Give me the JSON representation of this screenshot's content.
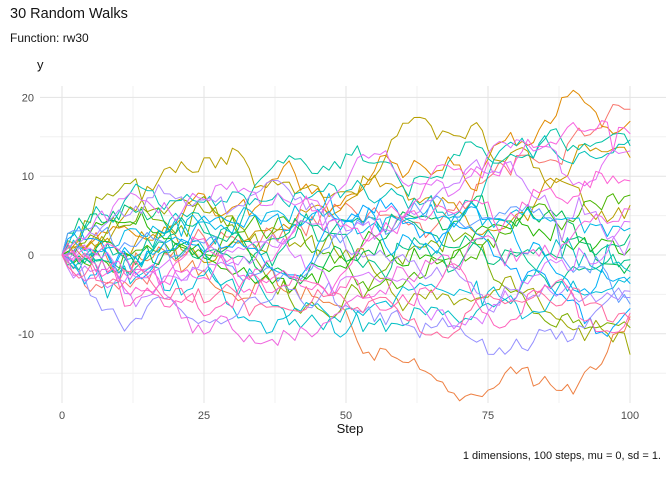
{
  "chart_data": {
    "type": "line",
    "title": "30 Random Walks",
    "subtitle": "Function: rw30",
    "xlabel": "Step",
    "ylabel": "y",
    "caption": "1 dimensions, 100 steps, mu = 0, sd = 1.",
    "x_ticks": [
      0,
      25,
      50,
      75,
      100
    ],
    "x_minor": [
      12.5,
      37.5,
      62.5,
      87.5
    ],
    "y_ticks": [
      -10,
      0,
      10,
      20
    ],
    "y_minor": [
      -15,
      -5,
      5,
      15
    ],
    "xlim": [
      -4,
      106
    ],
    "ylim": [
      -18.8,
      21.4
    ],
    "grid": true,
    "legend": "none",
    "background": "#ffffff",
    "grid_major_color": "#e3e3e3",
    "grid_minor_color": "#f0f0f0",
    "text_color": "#141414",
    "tick_color": "#4d4d4d",
    "n_walks": 30,
    "steps": 100,
    "mu": 0,
    "sd": 1,
    "series": [
      {
        "color": "#F8766D",
        "seed": 11,
        "end": 18.5
      },
      {
        "color": "#EE8043",
        "seed": 22,
        "end": -8.7
      },
      {
        "color": "#E18A00",
        "seed": 33,
        "end": 17.2
      },
      {
        "color": "#CD9600",
        "seed": 44,
        "end": 12.4
      },
      {
        "color": "#B79F00",
        "seed": 55,
        "end": 6.3
      },
      {
        "color": "#9DA700",
        "seed": 66,
        "end": -12.6
      },
      {
        "color": "#7CAE00",
        "seed": 77,
        "end": -9.2
      },
      {
        "color": "#49B500",
        "seed": 88,
        "end": 7.6
      },
      {
        "color": "#24B700",
        "seed": 99,
        "end": 0.8
      },
      {
        "color": "#00BB4E",
        "seed": 110,
        "end": -1.2
      },
      {
        "color": "#00BF7D",
        "seed": 121,
        "end": 2.6
      },
      {
        "color": "#00C08B",
        "seed": 132,
        "end": -0.6
      },
      {
        "color": "#00C1A3",
        "seed": 143,
        "end": 13.9
      },
      {
        "color": "#00C0B8",
        "seed": 154,
        "end": 14.6
      },
      {
        "color": "#00BFC4",
        "seed": 165,
        "end": -2.1
      },
      {
        "color": "#00BCD8",
        "seed": 176,
        "end": -2.8
      },
      {
        "color": "#00B8E5",
        "seed": 187,
        "end": 3.4
      },
      {
        "color": "#00B0F6",
        "seed": 198,
        "end": -3.6
      },
      {
        "color": "#00A5FF",
        "seed": 209,
        "end": -6.8
      },
      {
        "color": "#619CFF",
        "seed": 220,
        "end": -6.2
      },
      {
        "color": "#9590FF",
        "seed": 231,
        "end": -5.4
      },
      {
        "color": "#AE87FF",
        "seed": 242,
        "end": -4.6
      },
      {
        "color": "#C77CFF",
        "seed": 253,
        "end": 1.8
      },
      {
        "color": "#D874FD",
        "seed": 264,
        "end": 4.2
      },
      {
        "color": "#E36EF6",
        "seed": 275,
        "end": 13.2
      },
      {
        "color": "#EF67DF",
        "seed": 286,
        "end": 5.8
      },
      {
        "color": "#F863E0",
        "seed": 297,
        "end": 15.4
      },
      {
        "color": "#FD61D3",
        "seed": 308,
        "end": 9.4
      },
      {
        "color": "#FF62BC",
        "seed": 319,
        "end": -7.4
      },
      {
        "color": "#FF689E",
        "seed": 330,
        "end": -8.2
      }
    ]
  }
}
